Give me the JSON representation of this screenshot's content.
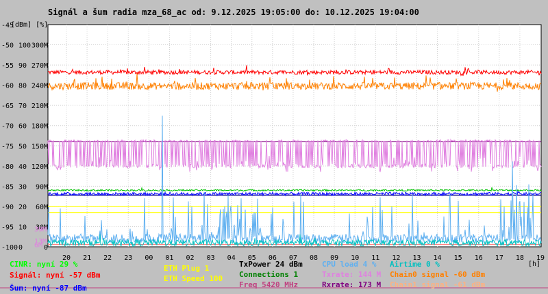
{
  "chart_data": {
    "type": "line",
    "title": "Signál a šum radia mza_68_ac od: 9.12.2025 19:05:00 do: 10.12.2025 19:04:00",
    "unit_label": "[dBm] [%]",
    "x_unit": "[h]",
    "x_ticks": [
      "20",
      "21",
      "22",
      "23",
      "00",
      "01",
      "02",
      "03",
      "04",
      "05",
      "06",
      "07",
      "08",
      "09",
      "10",
      "11",
      "12",
      "13",
      "14",
      "15",
      "16",
      "17",
      "18",
      "19"
    ],
    "y_left": {
      "range": [
        -100,
        -45
      ],
      "ticks": [
        -45,
        -50,
        -55,
        -60,
        -65,
        -70,
        -75,
        -80,
        -85,
        -90,
        -95,
        -100
      ],
      "labels": [
        "-45",
        "-50",
        "-55",
        "-60",
        "-65",
        "-70",
        "-75",
        "-80",
        "-85",
        "-90",
        "-95",
        "-100"
      ]
    },
    "y_percent_labels": [
      "100",
      "90",
      "80",
      "70",
      "60",
      "50",
      "40",
      "30",
      "20",
      "10",
      "0"
    ],
    "y_rate_labels": [
      "300M",
      "270M",
      "240M",
      "210M",
      "180M",
      "150M",
      "120M",
      "90M",
      "60M",
      "30M",
      "0"
    ],
    "axis_markers": [
      "39M",
      "13M",
      "6M"
    ],
    "series": [
      {
        "name": "Signál",
        "color": "#ff0000",
        "level": -56.8,
        "noise": 0.5,
        "spikes": 0.3
      },
      {
        "name": "Chain0 signal",
        "color": "#ff8000",
        "level": -60.2,
        "noise": 0.9,
        "spikes": 0.5
      },
      {
        "name": "Txrate",
        "color": "#e080e0",
        "level": -77.5,
        "noise": 3.5,
        "spikes": 0.6
      },
      {
        "name": "Šum",
        "color": "#0000ff",
        "level": -86.9,
        "noise": 0.4,
        "spikes": 0.1
      },
      {
        "name": "Connections",
        "color": "#00c000",
        "level": -86.0,
        "noise": 0.2,
        "spikes": 0.05
      },
      {
        "name": "CPU load",
        "color": "#60b0f0",
        "level": -98.0,
        "noise": 1.2,
        "spikes": 0.15
      },
      {
        "name": "CINR",
        "color": "#00c0c0",
        "level": -99.0,
        "noise": 0.8,
        "spikes": 0.05
      }
    ],
    "reference_lines": [
      {
        "name": "Rxrate",
        "color": "#800080",
        "level": -74.0
      },
      {
        "name": "Šum",
        "color": "#000080",
        "level": -87.2
      },
      {
        "name": "ETH Speed",
        "color": "#ffff00",
        "level": -90.0
      },
      {
        "name": "ETH Plug",
        "color": "#ffff00",
        "level": -91.5
      },
      {
        "name": "Freq",
        "color": "#ff8080",
        "level": -99.4
      }
    ],
    "grid": true
  },
  "legend": [
    {
      "text": "CINR: nyní 29 %",
      "color": "#00ff00"
    },
    {
      "text": "ETH Plug 1",
      "color": "#ffff00"
    },
    {
      "text": "TxPower 24 dBm",
      "color": "#000000"
    },
    {
      "text": "CPU load 4 %",
      "color": "#60b0f0"
    },
    {
      "text": "Airtime 0 %",
      "color": "#00c0c0"
    },
    {
      "text": "Signál: nyní -57 dBm",
      "color": "#ff0000"
    },
    {
      "text": "ETH Speed 100",
      "color": "#ffff00"
    },
    {
      "text": "Connections 1",
      "color": "#008000"
    },
    {
      "text": "Txrate: 144 M",
      "color": "#e080e0"
    },
    {
      "text": "Chain0 signal -60 dBm",
      "color": "#ff8000"
    },
    {
      "text": "Šum: nyní -87 dBm",
      "color": "#0000ff"
    },
    {
      "text": "Freq 5420 MHz",
      "color": "#c04080"
    },
    {
      "text": "Rxrate: 173 M",
      "color": "#800080"
    },
    {
      "text": "Chain1 signal -61 dBm",
      "color": "#ffb080"
    }
  ]
}
